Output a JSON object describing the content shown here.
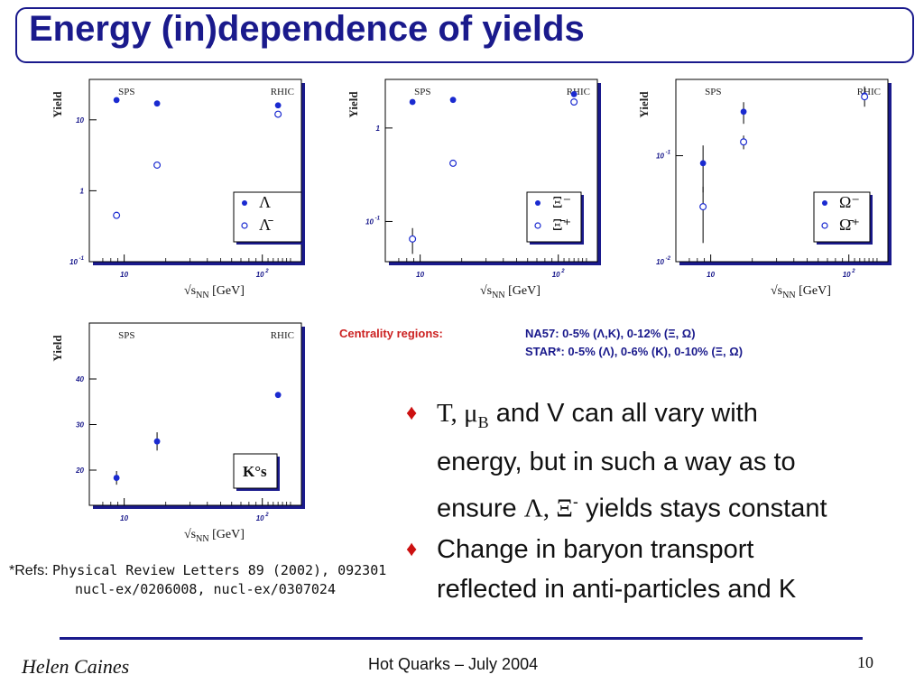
{
  "title": "Energy (in)dependence of yields",
  "chart_data": [
    {
      "type": "scatter",
      "ylabel": "Yield",
      "xlabel_parts": [
        "√s",
        "NN",
        " [GeV]"
      ],
      "region_labels": [
        "SPS",
        "RHIC"
      ],
      "log_y": true,
      "y_ticks": [
        {
          "base": "10",
          "exp": "-1"
        },
        {
          "base": "1",
          "exp": ""
        },
        {
          "base": "10",
          "exp": ""
        }
      ],
      "x_ticks": [
        {
          "base": "10",
          "exp": ""
        },
        {
          "base": "10",
          "exp": "2"
        }
      ],
      "legend": [
        "Λ",
        "Λ̄"
      ],
      "series": [
        {
          "name": "Λ",
          "marker": "filled",
          "x": [
            8.8,
            17.3,
            130
          ],
          "y": [
            19,
            17,
            16
          ]
        },
        {
          "name": "Λ̄",
          "marker": "open",
          "x": [
            8.8,
            17.3,
            130
          ],
          "y": [
            0.45,
            2.3,
            12
          ]
        }
      ]
    },
    {
      "type": "scatter",
      "ylabel": "Yield",
      "xlabel_parts": [
        "√s",
        "NN",
        " [GeV]"
      ],
      "region_labels": [
        "SPS",
        "RHIC"
      ],
      "log_y": true,
      "y_ticks": [
        {
          "base": "10",
          "exp": "-1"
        },
        {
          "base": "1",
          "exp": ""
        }
      ],
      "x_ticks": [
        {
          "base": "10",
          "exp": ""
        },
        {
          "base": "10",
          "exp": "2"
        }
      ],
      "legend": [
        "Ξ⁻",
        "Ξ̄⁺"
      ],
      "series": [
        {
          "name": "Ξ⁻",
          "marker": "filled",
          "x": [
            8.8,
            17.3,
            130
          ],
          "y": [
            1.9,
            2.0,
            2.3
          ]
        },
        {
          "name": "Ξ̄⁺",
          "marker": "open",
          "x": [
            8.8,
            17.3,
            130
          ],
          "y": [
            0.065,
            0.42,
            1.9
          ]
        }
      ]
    },
    {
      "type": "scatter",
      "ylabel": "Yield",
      "xlabel_parts": [
        "√s",
        "NN",
        " [GeV]"
      ],
      "region_labels": [
        "SPS",
        "RHIC"
      ],
      "log_y": true,
      "y_ticks": [
        {
          "base": "10",
          "exp": "-2"
        },
        {
          "base": "10",
          "exp": "-1"
        }
      ],
      "x_ticks": [
        {
          "base": "10",
          "exp": ""
        },
        {
          "base": "10",
          "exp": "2"
        }
      ],
      "legend": [
        "Ω⁻",
        "Ω̄⁺"
      ],
      "series": [
        {
          "name": "Ω⁻",
          "marker": "filled",
          "x": [
            8.8,
            17.3,
            130
          ],
          "y": [
            0.085,
            0.26,
            0.37
          ]
        },
        {
          "name": "Ω̄⁺",
          "marker": "open",
          "x": [
            8.8,
            17.3,
            130
          ],
          "y": [
            0.033,
            0.135,
            0.36
          ]
        }
      ]
    },
    {
      "type": "scatter",
      "ylabel": "Yield",
      "xlabel_parts": [
        "√s",
        "NN",
        " [GeV]"
      ],
      "region_labels": [
        "SPS",
        "RHIC"
      ],
      "log_y": false,
      "y_ticks": [
        {
          "base": "20",
          "exp": ""
        },
        {
          "base": "30",
          "exp": ""
        },
        {
          "base": "40",
          "exp": ""
        }
      ],
      "x_ticks": [
        {
          "base": "10",
          "exp": ""
        },
        {
          "base": "10",
          "exp": "2"
        }
      ],
      "legend": [
        "K°s"
      ],
      "series": [
        {
          "name": "K°s",
          "marker": "filled",
          "x": [
            8.8,
            17.3,
            130
          ],
          "y": [
            18.3,
            26.3,
            36.5
          ]
        }
      ]
    }
  ],
  "centrality": {
    "label": "Centrality regions:",
    "na57": "NA57:   0-5% (Λ,K), 0-12% (Ξ, Ω)",
    "star": "STAR*: 0-5% (Λ), 0-6% (K), 0-10% (Ξ, Ω)"
  },
  "bullets": {
    "b1_symbols": "T, μ",
    "b1_sub": "B",
    "b1_line1": " and V can all vary with",
    "b1_line2": "energy, but in such a way as to",
    "b1_line3_pre": "ensure ",
    "b1_line3_greek": "Λ, Ξ",
    "b1_line3_sup": "-",
    "b1_line3_post": " yields stays constant",
    "b2_line1": "Change in baryon transport",
    "b2_line2": "reflected in anti-particles and K"
  },
  "refs": {
    "label": "*Refs: ",
    "line1": "Physical Review Letters 89 (2002), 092301",
    "line2": "nucl-ex/0206008, nucl-ex/0307024"
  },
  "footer": {
    "author": "Helen Caines",
    "event": "Hot Quarks – July 2004",
    "page": "10"
  },
  "colors": {
    "accent": "#1a1a8c",
    "marker": "#1a2ad0",
    "highlight": "#cc2222"
  }
}
